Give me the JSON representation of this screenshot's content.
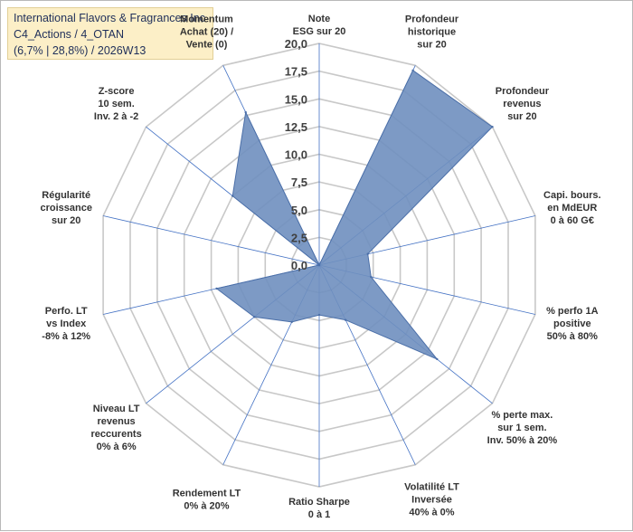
{
  "header": {
    "company": "International Flavors & Fragrances Inc",
    "portfolio": "C4_Actions / 4_OTAN",
    "summary": "(6,7% | 28,8%) / 2026W13"
  },
  "chart_data": {
    "type": "radar",
    "rmin": 0,
    "rmax": 20,
    "ticks": [
      0,
      2.5,
      5,
      7.5,
      10,
      12.5,
      15,
      17.5,
      20
    ],
    "tick_labels": [
      "0,0",
      "2,5",
      "5,0",
      "7,5",
      "10,0",
      "12,5",
      "15,0",
      "17,5",
      "20,0"
    ],
    "grid": true,
    "colors": {
      "fill": "#6f8fbf",
      "stroke": "#4b6fa8",
      "grid": "#c8c8c8",
      "spoke": "#4472c4"
    },
    "axes": [
      {
        "lines": [
          "Note",
          "ESG sur 20"
        ],
        "value": 0
      },
      {
        "lines": [
          "Profondeur",
          "historique",
          "sur 20"
        ],
        "value": 19.5
      },
      {
        "lines": [
          "Profondeur",
          "revenus",
          "sur 20"
        ],
        "value": 20
      },
      {
        "lines": [
          "Capi. bours.",
          "en MdEUR",
          "0 à 60 G€"
        ],
        "value": 4.5
      },
      {
        "lines": [
          "% perfo 1A",
          "positive",
          "50% à 80%"
        ],
        "value": 4.8
      },
      {
        "lines": [
          "% perte max.",
          "sur 1 sem.",
          "Inv. 50% à 20%"
        ],
        "value": 13.6
      },
      {
        "lines": [
          "Volatilité LT",
          "Inversée",
          "40% à 0%"
        ],
        "value": 5.5
      },
      {
        "lines": [
          "Ratio Sharpe",
          "0 à 1"
        ],
        "value": 4.5
      },
      {
        "lines": [
          "Rendement LT",
          "0% à 20%"
        ],
        "value": 5.7
      },
      {
        "lines": [
          "Niveau LT",
          "revenus",
          "reccurents",
          "0% à 6%"
        ],
        "value": 7.5
      },
      {
        "lines": [
          "Perfo. LT",
          "vs Index",
          "-8% à 12%"
        ],
        "value": 9.5
      },
      {
        "lines": [
          "Régularité",
          "croissance",
          "sur 20"
        ],
        "value": 0
      },
      {
        "lines": [
          "Z-score",
          "10 sem.",
          "Inv. 2 à -2"
        ],
        "value": 10
      },
      {
        "lines": [
          "Momentum",
          "Achat (20) /",
          "Vente (0)"
        ],
        "value": 15.3
      }
    ]
  }
}
